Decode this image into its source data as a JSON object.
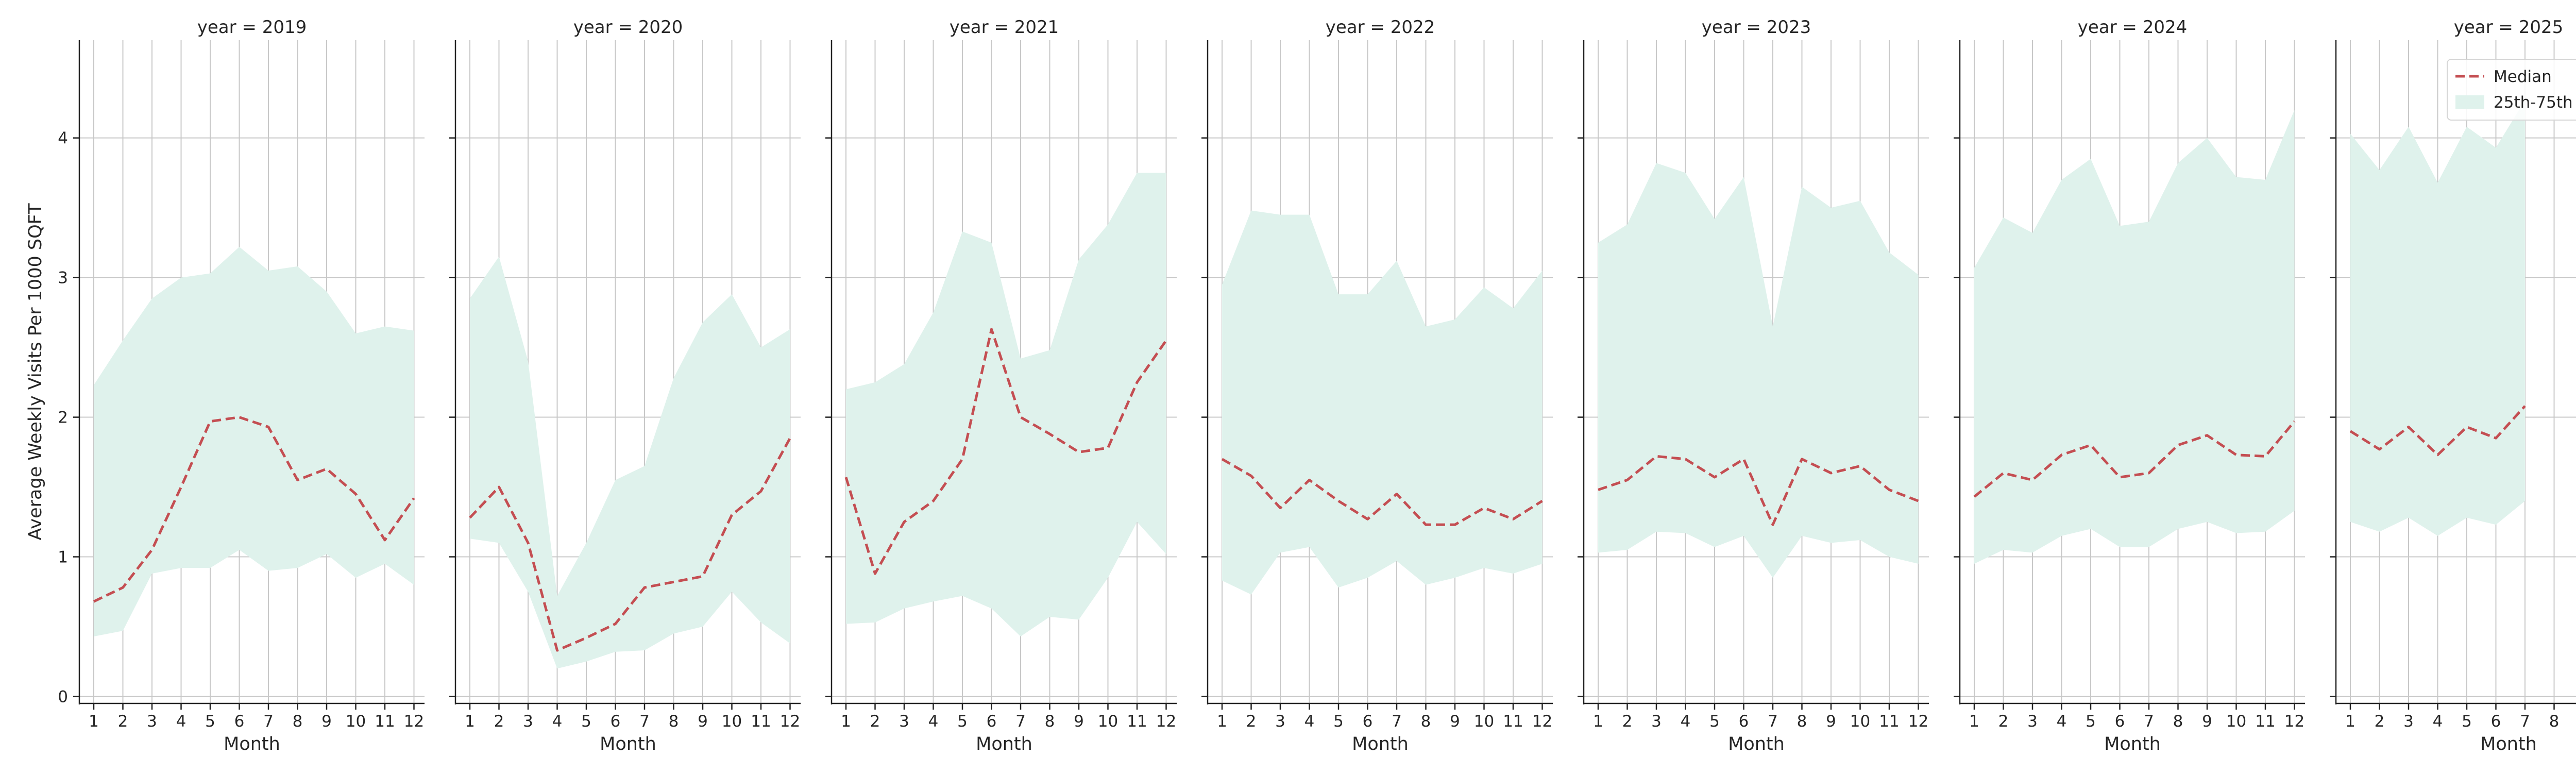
{
  "chart_data": {
    "type": "line",
    "ylabel": "Average Weekly Visits Per 1000 SQFT",
    "xlabel": "Month",
    "x": [
      1,
      2,
      3,
      4,
      5,
      6,
      7,
      8,
      9,
      10,
      11,
      12
    ],
    "x_tick_labels": [
      "1",
      "2",
      "3",
      "4",
      "5",
      "6",
      "7",
      "8",
      "9",
      "10",
      "11",
      "12"
    ],
    "ylim": [
      -0.05,
      4.7
    ],
    "y_ticks": [
      0,
      1,
      2,
      3,
      4
    ],
    "y_tick_labels": [
      "0",
      "1",
      "2",
      "3",
      "4"
    ],
    "grid": true,
    "legend": {
      "placement": "top-right",
      "entries": [
        "Median",
        "25th-75th Percentile"
      ]
    },
    "colors": {
      "median": "#c44e52",
      "band": "#dff2ec"
    },
    "facets": [
      {
        "title": "year = 2019",
        "median": [
          0.68,
          0.78,
          1.05,
          1.5,
          1.97,
          2.0,
          1.93,
          1.55,
          1.63,
          1.45,
          1.12,
          1.42
        ],
        "p25": [
          0.43,
          0.47,
          0.88,
          0.92,
          0.92,
          1.05,
          0.9,
          0.92,
          1.02,
          0.85,
          0.95,
          0.8
        ],
        "p75": [
          2.23,
          2.55,
          2.85,
          3.0,
          3.03,
          3.22,
          3.05,
          3.08,
          2.9,
          2.6,
          2.65,
          2.62
        ]
      },
      {
        "title": "year = 2020",
        "median": [
          1.28,
          1.5,
          1.1,
          0.33,
          0.42,
          0.52,
          0.78,
          0.82,
          0.86,
          1.3,
          1.47,
          1.85
        ],
        "p25": [
          1.13,
          1.1,
          0.75,
          0.2,
          0.25,
          0.32,
          0.33,
          0.45,
          0.5,
          0.75,
          0.53,
          0.38
        ],
        "p75": [
          2.85,
          3.15,
          2.4,
          0.72,
          1.1,
          1.55,
          1.65,
          2.28,
          2.68,
          2.88,
          2.5,
          2.63
        ]
      },
      {
        "title": "year = 2021",
        "median": [
          1.57,
          0.88,
          1.25,
          1.4,
          1.7,
          2.63,
          2.0,
          1.88,
          1.75,
          1.78,
          2.25,
          2.55
        ],
        "p25": [
          0.52,
          0.53,
          0.63,
          0.68,
          0.72,
          0.63,
          0.43,
          0.57,
          0.55,
          0.85,
          1.25,
          1.02
        ],
        "p75": [
          2.2,
          2.25,
          2.38,
          2.75,
          3.33,
          3.25,
          2.42,
          2.48,
          3.13,
          3.38,
          3.75,
          3.75
        ]
      },
      {
        "title": "year = 2022",
        "median": [
          1.7,
          1.58,
          1.35,
          1.55,
          1.4,
          1.27,
          1.45,
          1.23,
          1.23,
          1.35,
          1.27,
          1.4
        ],
        "p25": [
          0.83,
          0.73,
          1.03,
          1.07,
          0.78,
          0.85,
          0.97,
          0.8,
          0.85,
          0.92,
          0.88,
          0.95
        ],
        "p75": [
          2.95,
          3.48,
          3.45,
          3.45,
          2.88,
          2.88,
          3.12,
          2.65,
          2.7,
          2.93,
          2.78,
          3.05
        ]
      },
      {
        "title": "year = 2023",
        "median": [
          1.48,
          1.55,
          1.72,
          1.7,
          1.57,
          1.7,
          1.23,
          1.7,
          1.6,
          1.65,
          1.48,
          1.4
        ],
        "p25": [
          1.03,
          1.05,
          1.18,
          1.17,
          1.07,
          1.15,
          0.85,
          1.15,
          1.1,
          1.12,
          1.0,
          0.95
        ],
        "p75": [
          3.25,
          3.38,
          3.82,
          3.75,
          3.42,
          3.72,
          2.65,
          3.65,
          3.5,
          3.55,
          3.18,
          3.02
        ]
      },
      {
        "title": "year = 2024",
        "median": [
          1.43,
          1.6,
          1.55,
          1.73,
          1.8,
          1.57,
          1.6,
          1.8,
          1.87,
          1.73,
          1.72,
          1.97
        ],
        "p25": [
          0.95,
          1.05,
          1.03,
          1.15,
          1.2,
          1.07,
          1.07,
          1.2,
          1.25,
          1.17,
          1.18,
          1.33
        ],
        "p75": [
          3.07,
          3.43,
          3.32,
          3.7,
          3.85,
          3.37,
          3.4,
          3.82,
          4.0,
          3.72,
          3.7,
          4.2
        ]
      },
      {
        "title": "year = 2025",
        "median": [
          1.9,
          1.77,
          1.93,
          1.73,
          1.93,
          1.85,
          2.08
        ],
        "p25": [
          1.25,
          1.18,
          1.28,
          1.15,
          1.28,
          1.23,
          1.4
        ],
        "p75": [
          4.03,
          3.77,
          4.08,
          3.68,
          4.08,
          3.93,
          4.27
        ]
      }
    ]
  }
}
